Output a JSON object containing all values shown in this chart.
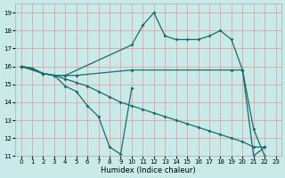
{
  "xlabel": "Humidex (Indice chaleur)",
  "bg_color": "#c8eae8",
  "grid_color": "#f08080",
  "line_color": "#1a6b6b",
  "xlim": [
    -0.5,
    23.5
  ],
  "ylim": [
    11,
    19.5
  ],
  "yticks": [
    11,
    12,
    13,
    14,
    15,
    16,
    17,
    18,
    19
  ],
  "xticks": [
    0,
    1,
    2,
    3,
    4,
    5,
    6,
    7,
    8,
    9,
    10,
    11,
    12,
    13,
    14,
    15,
    16,
    17,
    18,
    19,
    20,
    21,
    22,
    23
  ],
  "line1_x": [
    0,
    1,
    2,
    3,
    4,
    10,
    11,
    12,
    13,
    14,
    15,
    16,
    17,
    18,
    19,
    20,
    21,
    22
  ],
  "line1_y": [
    16.0,
    15.9,
    15.6,
    15.5,
    15.5,
    17.2,
    18.3,
    19.0,
    17.7,
    17.5,
    17.5,
    17.5,
    17.7,
    18.0,
    17.5,
    15.8,
    12.5,
    11.0
  ],
  "line2_x": [
    0,
    1,
    2,
    3,
    4,
    5,
    6,
    7,
    8,
    9,
    10
  ],
  "line2_y": [
    16.0,
    15.9,
    15.6,
    15.5,
    14.9,
    14.6,
    13.8,
    13.2,
    11.5,
    11.1,
    14.8
  ],
  "line3_x": [
    0,
    1,
    2,
    3,
    4,
    5,
    6,
    7,
    8,
    9,
    10,
    11,
    12,
    13,
    14,
    15,
    16,
    17,
    18,
    19,
    20,
    21,
    22
  ],
  "line3_y": [
    16.0,
    15.9,
    15.6,
    15.5,
    15.3,
    15.1,
    14.9,
    14.6,
    14.3,
    14.0,
    13.8,
    13.6,
    13.4,
    13.2,
    13.0,
    12.8,
    12.6,
    12.4,
    12.2,
    12.0,
    11.8,
    11.5,
    11.5
  ],
  "line4_x": [
    0,
    2,
    3,
    4,
    5,
    10,
    19,
    20,
    21,
    22
  ],
  "line4_y": [
    16.0,
    15.6,
    15.5,
    15.5,
    15.5,
    15.8,
    15.8,
    15.8,
    11.0,
    11.5
  ]
}
